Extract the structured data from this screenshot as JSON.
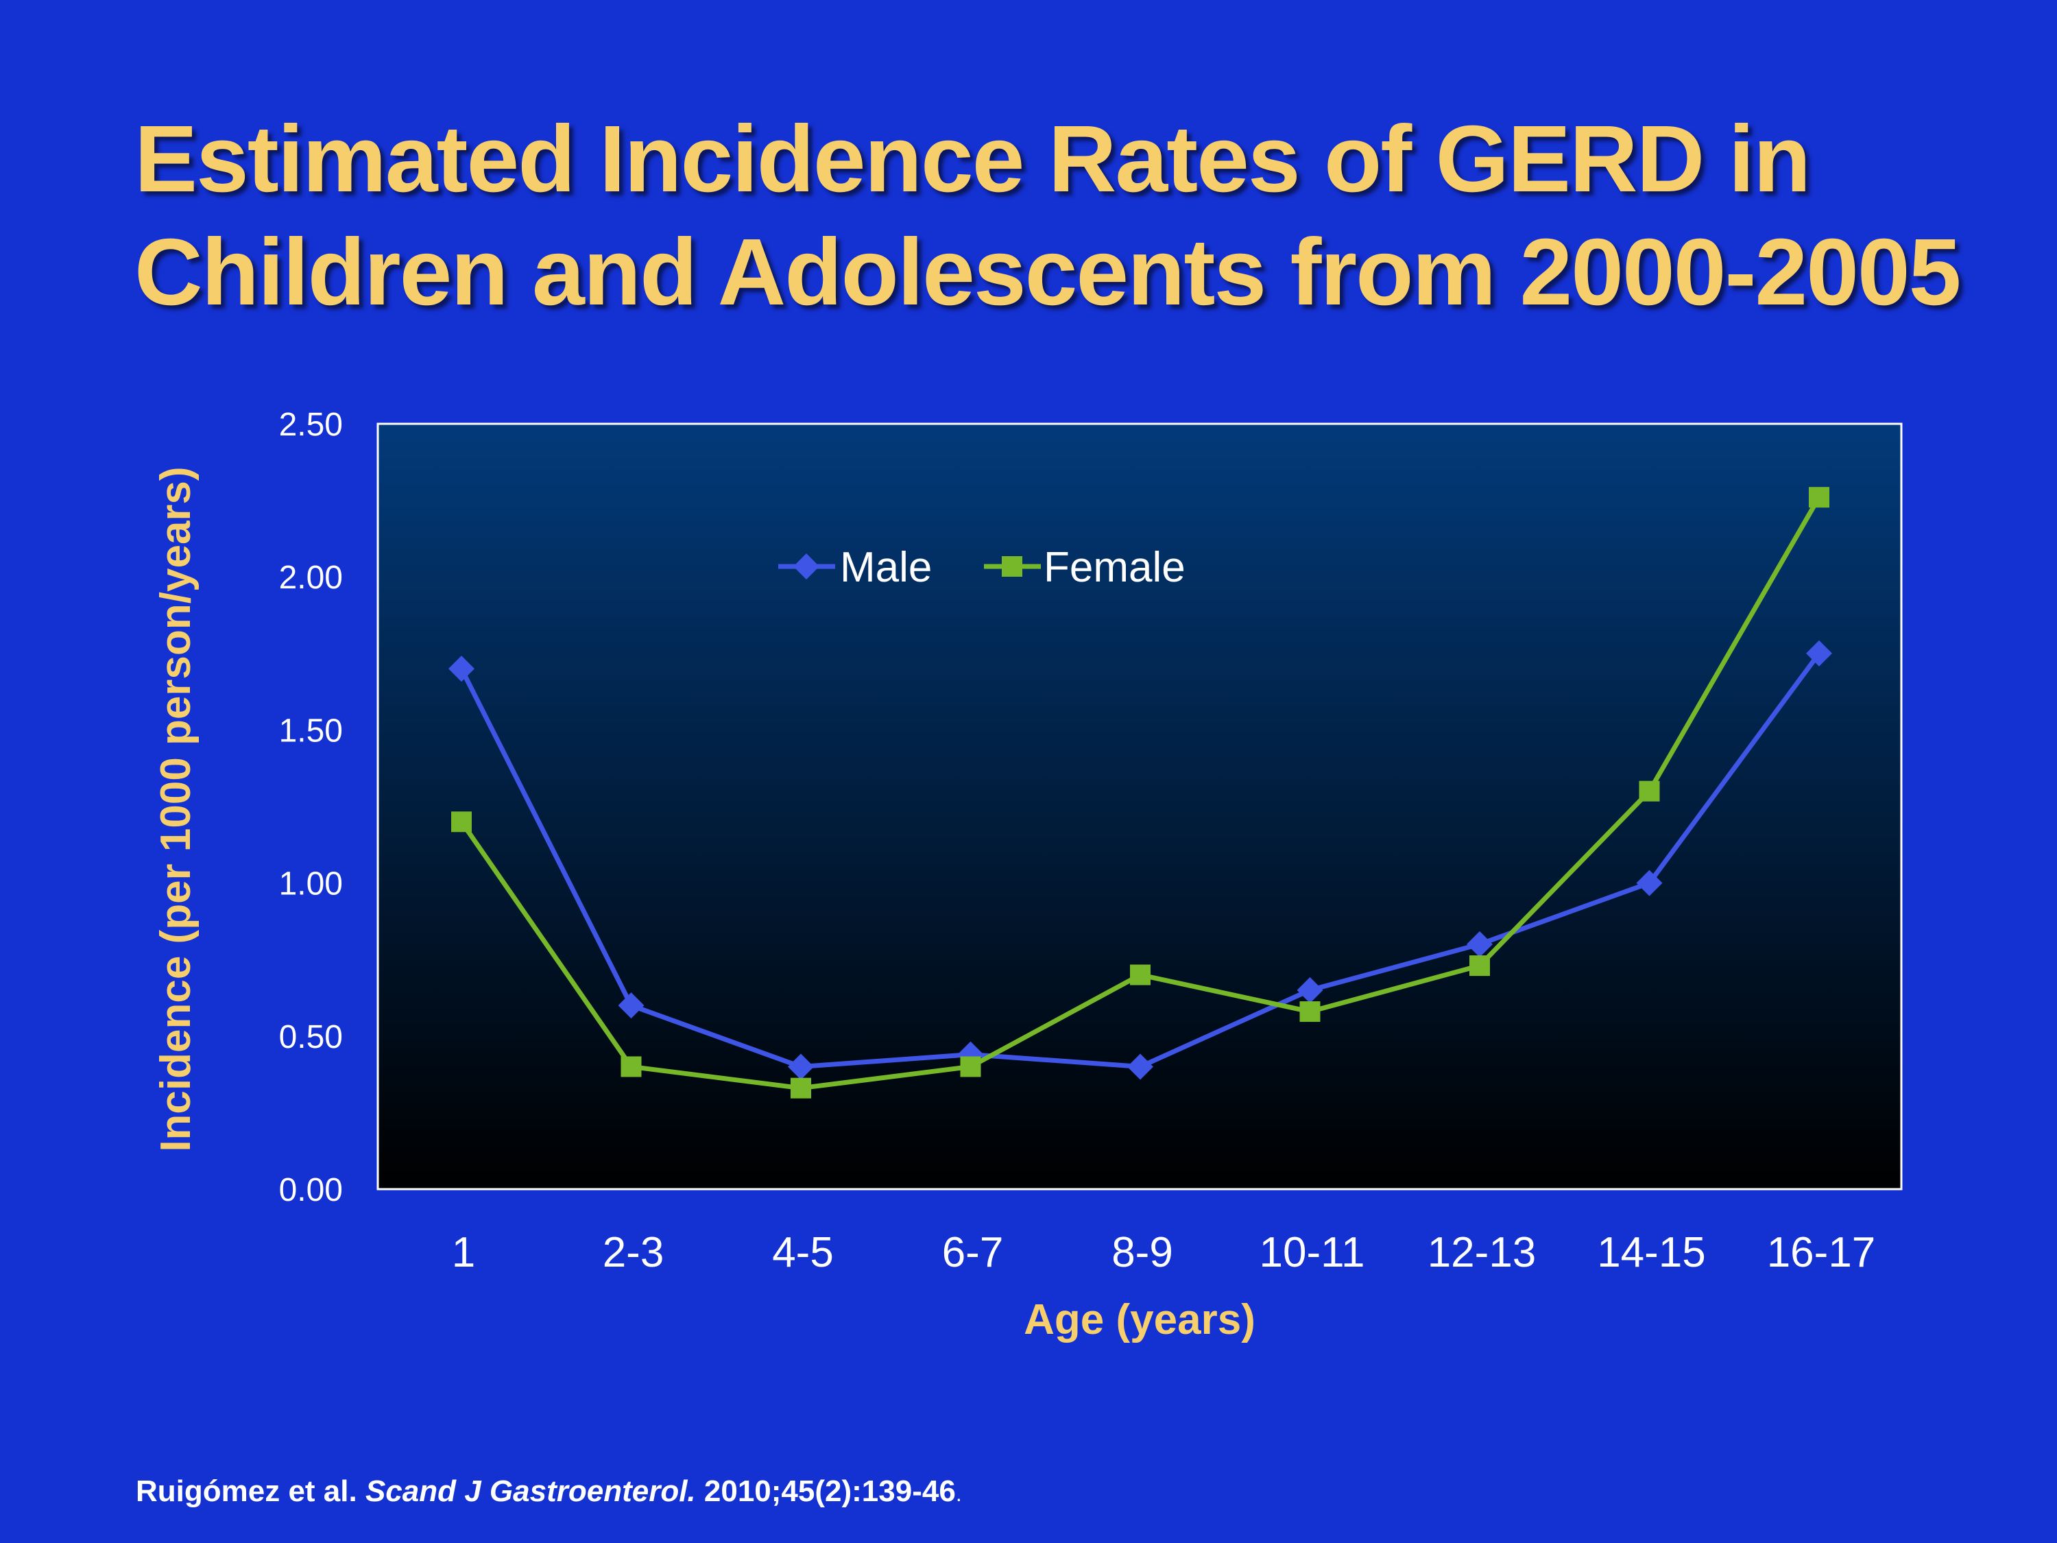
{
  "title": {
    "line1": "Estimated Incidence Rates of GERD in",
    "line2": "Children and Adolescents from 2000-2005"
  },
  "chart_data": {
    "type": "line",
    "categories": [
      "1",
      "2-3",
      "4-5",
      "6-7",
      "8-9",
      "10-11",
      "12-13",
      "14-15",
      "16-17"
    ],
    "series": [
      {
        "name": "Male",
        "marker": "diamond",
        "color": "#3f55e6",
        "values": [
          1.7,
          0.6,
          0.4,
          0.44,
          0.4,
          0.65,
          0.8,
          1.0,
          1.75
        ]
      },
      {
        "name": "Female",
        "marker": "square",
        "color": "#76b82a",
        "values": [
          1.2,
          0.4,
          0.33,
          0.4,
          0.7,
          0.58,
          0.73,
          1.3,
          2.26
        ]
      }
    ],
    "ylim": [
      0,
      2.5
    ],
    "yticks": [
      "0.00",
      "0.50",
      "1.00",
      "1.50",
      "2.00",
      "2.50"
    ],
    "xlabel": "Age (years)",
    "ylabel": "Incidence (per 1000 person/years)",
    "legend_position": "top-center",
    "grid": false,
    "plot_background": [
      "#023a7a",
      "#000000"
    ]
  },
  "citation": {
    "authors": "Ruigómez  et al.",
    "journal": "Scand J Gastroenterol.",
    "ref": "2010;45(2):139-46",
    "period": "."
  }
}
